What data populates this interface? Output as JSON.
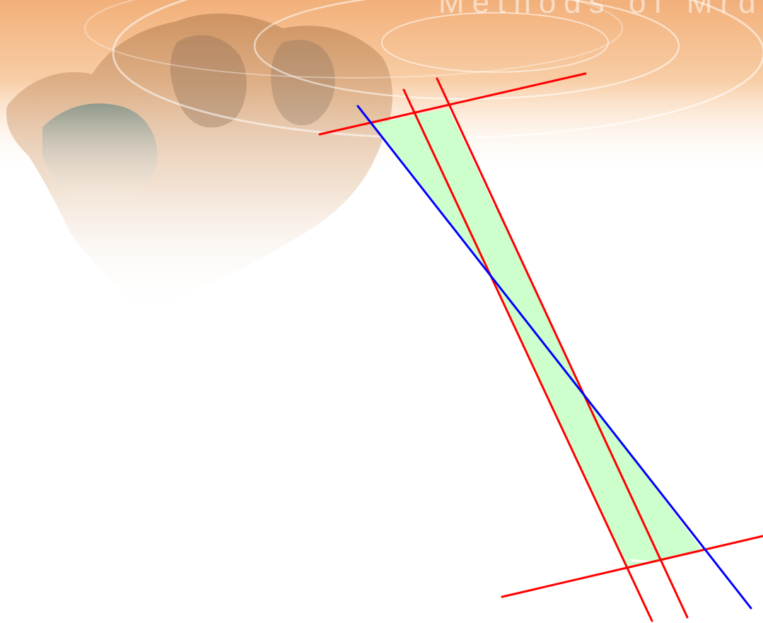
{
  "background": {
    "header_text": "Methods of Mrd",
    "header_gradient": [
      "#f3b47a",
      "#fbd9b6",
      "#ffffff"
    ],
    "collage_color": "#d9a06b"
  },
  "diagram": {
    "colors": {
      "red_line": "#ff0000",
      "blue_line": "#0000ff",
      "fill": "#ccffcc"
    }
  }
}
